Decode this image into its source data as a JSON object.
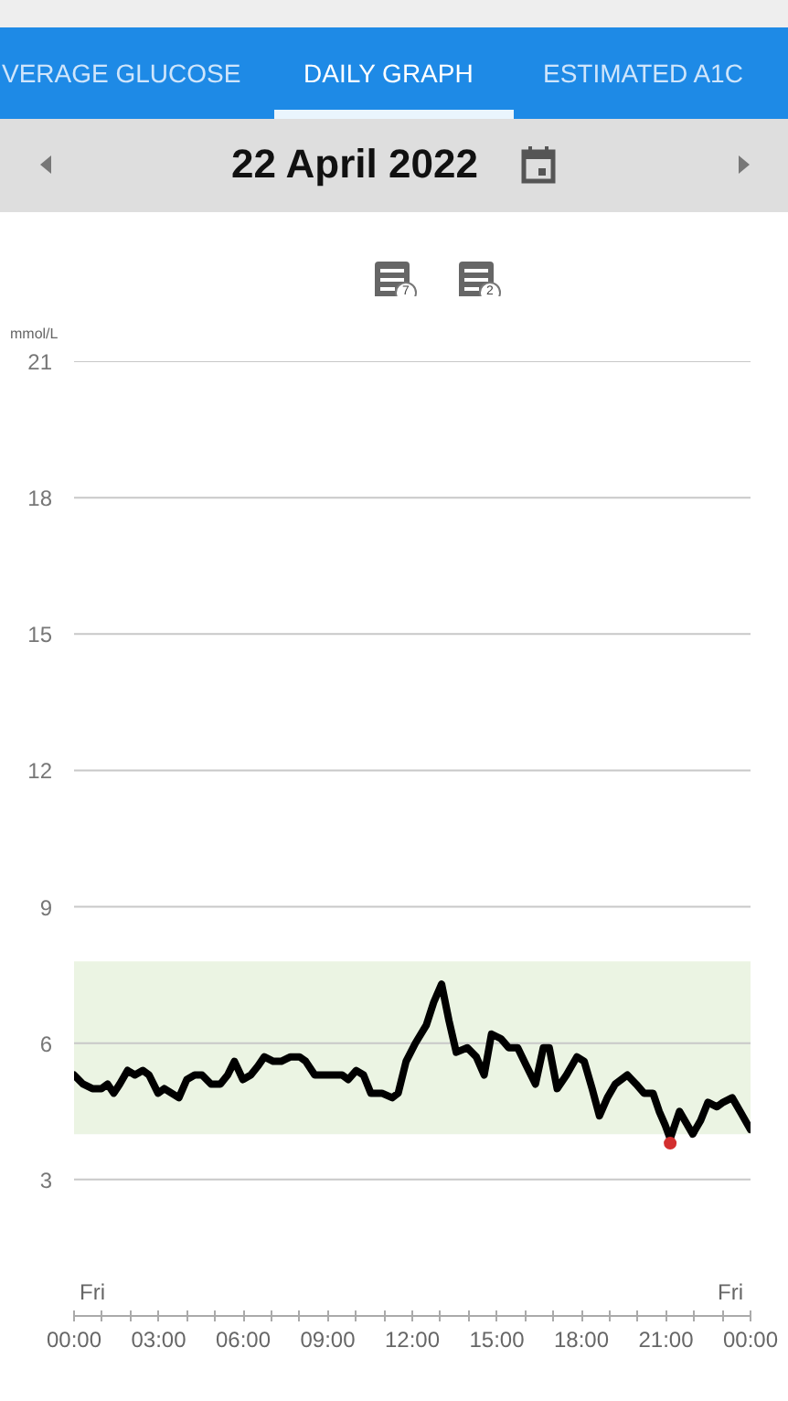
{
  "chart_data": {
    "type": "line",
    "title": "22 April 2022",
    "ylabel": "mmol/L",
    "annotations": [
      "VERAGE GLUCOSE",
      "DAILY GRAPH",
      "ESTIMATED A1C",
      "7",
      "2",
      "Fri",
      "Fri"
    ],
    "xlim": [
      0,
      24
    ],
    "xticks": [
      {
        "value": 0,
        "label": "00:00"
      },
      {
        "value": 1,
        "label": null
      },
      {
        "value": 2,
        "label": null
      },
      {
        "value": 3,
        "label": "03:00"
      },
      {
        "value": 4,
        "label": null
      },
      {
        "value": 5,
        "label": null
      },
      {
        "value": 6,
        "label": "06:00"
      },
      {
        "value": 7,
        "label": null
      },
      {
        "value": 8,
        "label": null
      },
      {
        "value": 9,
        "label": "09:00"
      },
      {
        "value": 10,
        "label": null
      },
      {
        "value": 11,
        "label": null
      },
      {
        "value": 12,
        "label": "12:00"
      },
      {
        "value": 13,
        "label": null
      },
      {
        "value": 14,
        "label": null
      },
      {
        "value": 15,
        "label": "15:00"
      },
      {
        "value": 16,
        "label": null
      },
      {
        "value": 17,
        "label": null
      },
      {
        "value": 18,
        "label": "18:00"
      },
      {
        "value": 19,
        "label": null
      },
      {
        "value": 20,
        "label": null
      },
      {
        "value": 21,
        "label": "21:00"
      },
      {
        "value": 22,
        "label": null
      },
      {
        "value": 23,
        "label": null
      },
      {
        "value": 24,
        "label": "00:00"
      }
    ],
    "ylim": [
      0,
      21
    ],
    "yticks": [
      3,
      6,
      9,
      12,
      15,
      18,
      21
    ],
    "grid": "y",
    "bands": [
      {
        "axis": "y",
        "from": 4.0,
        "to": 7.8,
        "color": "#ebf4e3"
      }
    ],
    "series": [
      {
        "color": "#000000",
        "line_style": "solid",
        "x": [
          0,
          0.32,
          0.65,
          0.97,
          1.19,
          1.41,
          1.62,
          1.9,
          2.16,
          2.44,
          2.66,
          2.98,
          3.2,
          3.46,
          3.72,
          4.0,
          4.28,
          4.54,
          4.86,
          5.19,
          5.45,
          5.69,
          5.99,
          6.27,
          6.53,
          6.75,
          7.07,
          7.35,
          7.68,
          8.0,
          8.22,
          8.54,
          8.82,
          9.08,
          9.3,
          9.51,
          9.73,
          10.01,
          10.27,
          10.53,
          10.92,
          11.29,
          11.5,
          11.78,
          12.11,
          12.5,
          12.76,
          13.04,
          13.3,
          13.56,
          13.95,
          14.27,
          14.55,
          14.81,
          15.14,
          15.42,
          15.74,
          16.05,
          16.37,
          16.65,
          16.86,
          17.14,
          17.47,
          17.84,
          18.1,
          18.38,
          18.64,
          18.92,
          19.2,
          19.63,
          19.94,
          20.22,
          20.54,
          20.76,
          20.97,
          21.15,
          21.48,
          21.95,
          22.23,
          22.49,
          22.81,
          23.03,
          23.35,
          23.63,
          24.0
        ],
        "values": [
          5.3,
          5.1,
          5.0,
          5.0,
          5.1,
          4.9,
          5.1,
          5.4,
          5.3,
          5.4,
          5.3,
          4.9,
          5.0,
          4.9,
          4.8,
          5.2,
          5.3,
          5.3,
          5.1,
          5.1,
          5.3,
          5.6,
          5.2,
          5.3,
          5.5,
          5.7,
          5.6,
          5.6,
          5.7,
          5.7,
          5.6,
          5.3,
          5.3,
          5.3,
          5.3,
          5.3,
          5.2,
          5.4,
          5.3,
          4.9,
          4.9,
          4.8,
          4.9,
          5.6,
          6.0,
          6.4,
          6.9,
          7.3,
          6.5,
          5.8,
          5.9,
          5.7,
          5.3,
          6.2,
          6.1,
          5.9,
          5.9,
          5.5,
          5.1,
          5.9,
          5.9,
          5.0,
          5.3,
          5.7,
          5.6,
          5.0,
          4.4,
          4.8,
          5.1,
          5.3,
          5.1,
          4.9,
          4.9,
          4.5,
          4.2,
          3.9,
          4.5,
          4.0,
          4.3,
          4.7,
          4.6,
          4.7,
          4.8,
          4.5,
          4.1
        ]
      },
      {
        "type": "scatter",
        "color": "#d32f2f",
        "marker": "circle",
        "x": [
          21.15
        ],
        "values": [
          3.8
        ]
      }
    ]
  }
}
